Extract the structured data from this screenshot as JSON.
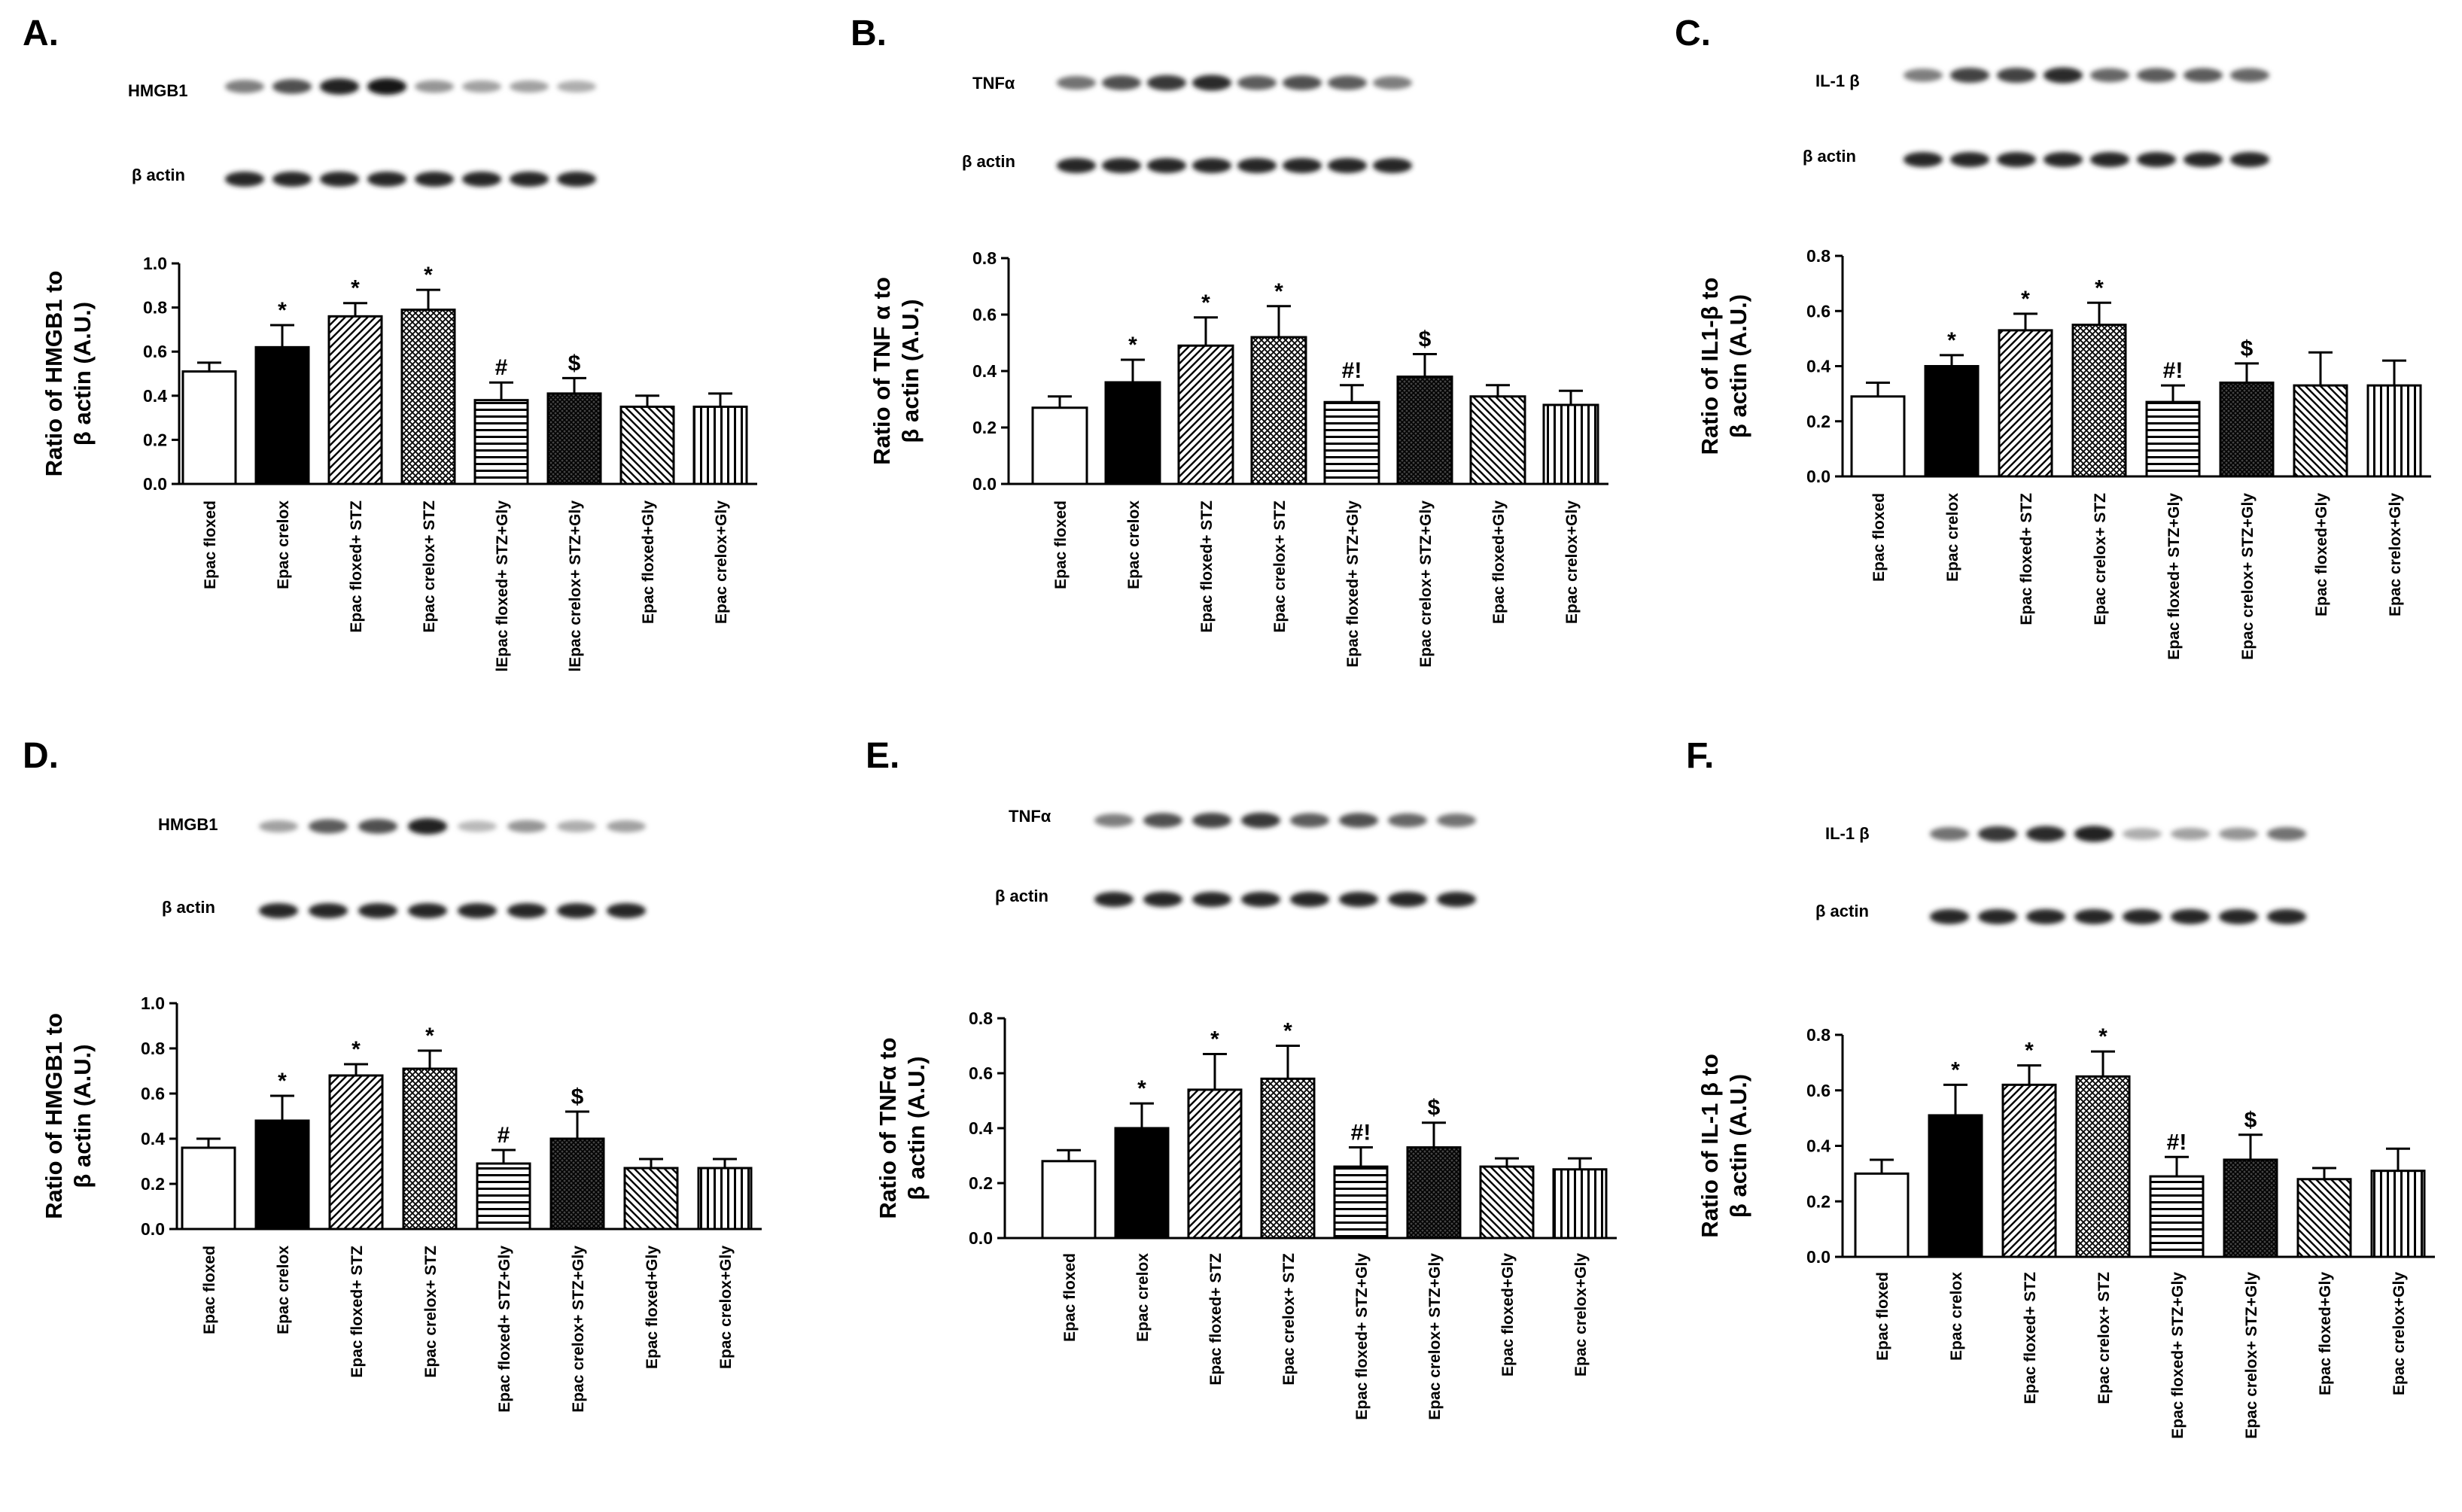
{
  "figure": {
    "category_labels": {
      "standard": [
        "Epac floxed",
        "Epac crelox",
        "Epac floxed+ STZ",
        "Epac crelox+ STZ",
        "Epac floxed+ STZ+Gly",
        "Epac crelox+ STZ+Gly",
        "Epac floxed+Gly",
        "Epac crelox+Gly"
      ],
      "panel_a": [
        "Epac floxed",
        "Epac crelox",
        "Epac floxed+ STZ",
        "Epac crelox+ STZ",
        "lEpac floxed+ STZ+Gly",
        "lEpac crelox+ STZ+Gly",
        "Epac floxed+Gly",
        "Epac crelox+Gly"
      ]
    },
    "legend_fill_order": [
      "white",
      "black",
      "diagonal",
      "crosshatch",
      "horizontal",
      "dense-crosshatch",
      "back-diagonal",
      "vertical"
    ]
  },
  "chart_data": [
    {
      "type": "bar",
      "letter": "A.",
      "protein": "HMGB1",
      "loading": "β actin",
      "ylabel": [
        "Ratio of  HMGB1 to",
        "β actin  (A.U.)"
      ],
      "ylim": [
        0,
        1.0
      ],
      "yticks": [
        "0.0",
        "0.2",
        "0.4",
        "0.6",
        "0.8",
        "1.0"
      ],
      "label_set": "panel_a",
      "values": [
        0.51,
        0.62,
        0.76,
        0.79,
        0.38,
        0.41,
        0.35,
        0.35
      ],
      "errors": [
        0.04,
        0.1,
        0.06,
        0.09,
        0.08,
        0.07,
        0.05,
        0.06
      ],
      "annotations": [
        "",
        "*",
        "*",
        "*",
        "#",
        "$",
        "",
        ""
      ]
    },
    {
      "type": "bar",
      "letter": "B.",
      "protein": "TNFα",
      "loading": "β actin",
      "ylabel": [
        "Ratio of TNF α to",
        "β actin  (A.U.)"
      ],
      "ylim": [
        0,
        0.8
      ],
      "yticks": [
        "0.0",
        "0.2",
        "0.4",
        "0.6",
        "0.8"
      ],
      "label_set": "standard",
      "values": [
        0.27,
        0.36,
        0.49,
        0.52,
        0.29,
        0.38,
        0.31,
        0.28
      ],
      "errors": [
        0.04,
        0.08,
        0.1,
        0.11,
        0.06,
        0.08,
        0.04,
        0.05
      ],
      "annotations": [
        "",
        "*",
        "*",
        "*",
        "#!",
        "$",
        "",
        ""
      ]
    },
    {
      "type": "bar",
      "letter": "C.",
      "protein": "IL-1 β",
      "loading": "β actin",
      "ylabel": [
        "Ratio of  IL1-β to",
        "β actin  (A.U.)"
      ],
      "ylim": [
        0,
        0.8
      ],
      "yticks": [
        "0.0",
        "0.2",
        "0.4",
        "0.6",
        "0.8"
      ],
      "label_set": "standard",
      "values": [
        0.29,
        0.4,
        0.53,
        0.55,
        0.27,
        0.34,
        0.33,
        0.33
      ],
      "errors": [
        0.05,
        0.04,
        0.06,
        0.08,
        0.06,
        0.07,
        0.12,
        0.09
      ],
      "annotations": [
        "",
        "*",
        "*",
        "*",
        "#!",
        "$",
        "",
        ""
      ]
    },
    {
      "type": "bar",
      "letter": "D.",
      "protein": "HMGB1",
      "loading": "β actin",
      "ylabel": [
        "Ratio of HMGB1 to",
        "β actin  (A.U.)"
      ],
      "ylim": [
        0,
        1.0
      ],
      "yticks": [
        "0.0",
        "0.2",
        "0.4",
        "0.6",
        "0.8",
        "1.0"
      ],
      "label_set": "standard",
      "values": [
        0.36,
        0.48,
        0.68,
        0.71,
        0.29,
        0.4,
        0.27,
        0.27
      ],
      "errors": [
        0.04,
        0.11,
        0.05,
        0.08,
        0.06,
        0.12,
        0.04,
        0.04
      ],
      "annotations": [
        "",
        "*",
        "*",
        "*",
        "#",
        "$",
        "",
        ""
      ]
    },
    {
      "type": "bar",
      "letter": "E.",
      "protein": "TNFα",
      "loading": "β actin",
      "ylabel": [
        "Ratio of TNFα to",
        "β actin  (A.U.)"
      ],
      "ylim": [
        0,
        0.8
      ],
      "yticks": [
        "0.0",
        "0.2",
        "0.4",
        "0.6",
        "0.8"
      ],
      "label_set": "standard",
      "values": [
        0.28,
        0.4,
        0.54,
        0.58,
        0.26,
        0.33,
        0.26,
        0.25
      ],
      "errors": [
        0.04,
        0.09,
        0.13,
        0.12,
        0.07,
        0.09,
        0.03,
        0.04
      ],
      "annotations": [
        "",
        "*",
        "*",
        "*",
        "#!",
        "$",
        "",
        ""
      ]
    },
    {
      "type": "bar",
      "letter": "F.",
      "protein": "IL-1 β",
      "loading": "β actin",
      "ylabel": [
        "Ratio of IL-1 β to",
        "β actin  (A.U.)"
      ],
      "ylim": [
        0,
        0.8
      ],
      "yticks": [
        "0.0",
        "0.2",
        "0.4",
        "0.6",
        "0.8"
      ],
      "label_set": "standard",
      "values": [
        0.3,
        0.51,
        0.62,
        0.65,
        0.29,
        0.35,
        0.28,
        0.31
      ],
      "errors": [
        0.05,
        0.11,
        0.07,
        0.09,
        0.07,
        0.09,
        0.04,
        0.08
      ],
      "annotations": [
        "",
        "*",
        "*",
        "*",
        "#!",
        "$",
        "",
        ""
      ]
    }
  ]
}
